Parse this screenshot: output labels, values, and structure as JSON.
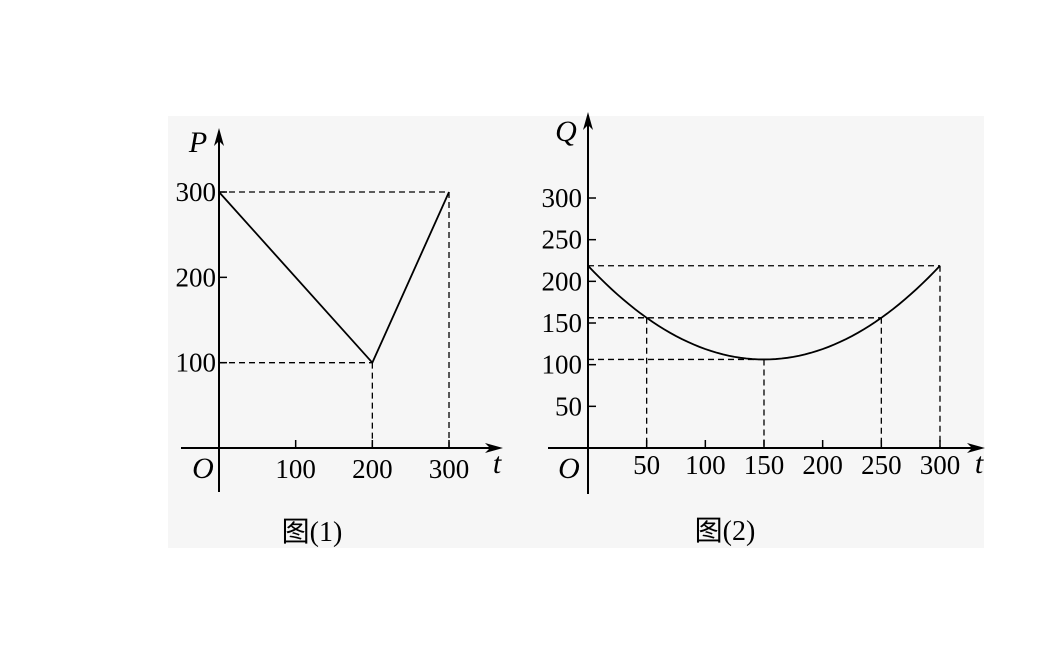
{
  "chart_data": [
    {
      "type": "line",
      "caption": "图(1)",
      "xlabel": "t",
      "ylabel": "P",
      "origin_label": "O",
      "xlim": [
        0,
        300
      ],
      "ylim": [
        0,
        300
      ],
      "x_ticks": [
        100,
        200,
        300
      ],
      "y_ticks": [
        100,
        200,
        300
      ],
      "x_tick_labels": [
        "100",
        "200",
        "300"
      ],
      "y_tick_labels": [
        "100",
        "200",
        "300"
      ],
      "series": [
        {
          "x": [
            0,
            200,
            300
          ],
          "y": [
            300,
            100,
            300
          ]
        }
      ],
      "guides": [
        {
          "x": 200,
          "y": 100
        },
        {
          "x": 300,
          "y": 300
        }
      ]
    },
    {
      "type": "line",
      "caption": "图(2)",
      "xlabel": "t",
      "ylabel": "Q",
      "origin_label": "O",
      "xlim": [
        0,
        300
      ],
      "ylim": [
        0,
        300
      ],
      "x_ticks": [
        50,
        100,
        150,
        200,
        250,
        300
      ],
      "y_ticks": [
        50,
        100,
        150,
        200,
        250,
        300
      ],
      "x_tick_labels": [
        "50",
        "100",
        "150",
        "200",
        "250",
        "300"
      ],
      "y_tick_labels": [
        "50",
        "100",
        "150",
        "200",
        "250",
        "300"
      ],
      "series": [
        {
          "x": [
            0,
            25,
            50,
            75,
            100,
            125,
            150,
            175,
            200,
            225,
            250,
            275,
            300
          ],
          "y": [
            218.75,
            184.4,
            156.25,
            134.4,
            118.75,
            109.4,
            106.25,
            109.4,
            118.75,
            134.4,
            156.25,
            184.4,
            218.75
          ]
        }
      ],
      "guides": [
        {
          "x": 150,
          "y": 106.25
        },
        {
          "x": 50,
          "y": 156.25
        },
        {
          "x": 250,
          "y": 156.25
        },
        {
          "x": 300,
          "y": 218.75
        }
      ]
    }
  ]
}
